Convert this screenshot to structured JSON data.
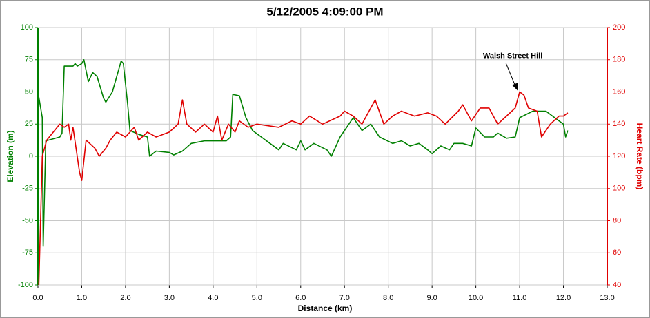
{
  "chart_data": {
    "type": "line",
    "title": "5/12/2005 4:09:00 PM",
    "x_label": "Distance (km)",
    "y_label": "Elevation (m)",
    "y2_label": "Heart Rate (bpm)",
    "y_color": "#008000",
    "y2_color": "#e00000",
    "grid": true,
    "xlim": [
      0,
      13
    ],
    "xticks": [
      {
        "value": 0,
        "label": "0.0"
      },
      {
        "value": 1,
        "label": "1.0"
      },
      {
        "value": 2,
        "label": "2.0"
      },
      {
        "value": 3,
        "label": "3.0"
      },
      {
        "value": 4,
        "label": "4.0"
      },
      {
        "value": 5,
        "label": "5.0"
      },
      {
        "value": 6,
        "label": "6.0"
      },
      {
        "value": 7,
        "label": "7.0"
      },
      {
        "value": 8,
        "label": "8.0"
      },
      {
        "value": 9,
        "label": "9.0"
      },
      {
        "value": 10,
        "label": "10.0"
      },
      {
        "value": 11,
        "label": "11.0"
      },
      {
        "value": 12,
        "label": "12.0"
      },
      {
        "value": 13,
        "label": "13.0"
      }
    ],
    "ylim": [
      -100,
      100
    ],
    "yticks": [
      -100,
      -75,
      -50,
      -25,
      0,
      25,
      50,
      75,
      100
    ],
    "y2lim": [
      40,
      200
    ],
    "y2ticks": [
      40,
      60,
      80,
      100,
      120,
      140,
      160,
      180,
      200
    ],
    "series": [
      {
        "name": "Elevation (m)",
        "color": "#008000",
        "x": [
          0,
          0.1,
          0.12,
          0.18,
          0.5,
          0.55,
          0.6,
          0.8,
          0.85,
          0.9,
          1.0,
          1.05,
          1.15,
          1.25,
          1.35,
          1.5,
          1.55,
          1.7,
          1.8,
          1.9,
          1.95,
          2.05,
          2.1,
          2.3,
          2.5,
          2.55,
          2.7,
          3.0,
          3.1,
          3.3,
          3.5,
          3.8,
          4.3,
          4.4,
          4.45,
          4.6,
          4.75,
          4.9,
          5.1,
          5.3,
          5.5,
          5.6,
          5.9,
          6.0,
          6.1,
          6.3,
          6.6,
          6.7,
          6.9,
          7.1,
          7.2,
          7.4,
          7.6,
          7.8,
          8.1,
          8.3,
          8.5,
          8.7,
          8.9,
          9.0,
          9.2,
          9.4,
          9.5,
          9.7,
          9.9,
          10.0,
          10.2,
          10.4,
          10.5,
          10.7,
          10.9,
          11.0,
          11.3,
          11.6,
          11.8,
          12.0,
          12.05,
          12.1
        ],
        "values": [
          50,
          30,
          -70,
          12,
          15,
          18,
          70,
          70,
          72,
          70,
          72,
          75,
          58,
          65,
          62,
          45,
          42,
          50,
          62,
          74,
          72,
          40,
          20,
          17,
          15,
          0,
          4,
          3,
          1,
          4,
          10,
          12,
          12,
          15,
          48,
          47,
          30,
          20,
          15,
          10,
          5,
          10,
          5,
          12,
          5,
          10,
          5,
          0,
          15,
          25,
          30,
          20,
          25,
          15,
          10,
          12,
          8,
          10,
          5,
          2,
          8,
          5,
          10,
          10,
          8,
          22,
          15,
          15,
          18,
          14,
          15,
          30,
          35,
          35,
          30,
          25,
          15,
          20
        ]
      },
      {
        "name": "Heart Rate (bpm)",
        "color": "#e00000",
        "axis": "y2",
        "x": [
          0.02,
          0.1,
          0.2,
          0.5,
          0.6,
          0.7,
          0.75,
          0.8,
          0.95,
          1.0,
          1.1,
          1.3,
          1.4,
          1.55,
          1.65,
          1.8,
          2.0,
          2.2,
          2.3,
          2.5,
          2.7,
          3.0,
          3.2,
          3.3,
          3.4,
          3.6,
          3.8,
          4.0,
          4.1,
          4.2,
          4.35,
          4.5,
          4.6,
          4.8,
          5.0,
          5.5,
          5.8,
          6.0,
          6.2,
          6.5,
          6.9,
          7.0,
          7.2,
          7.4,
          7.6,
          7.7,
          7.9,
          8.1,
          8.3,
          8.6,
          8.9,
          9.1,
          9.3,
          9.6,
          9.7,
          9.9,
          10.1,
          10.3,
          10.5,
          10.7,
          10.9,
          11.0,
          11.1,
          11.2,
          11.4,
          11.5,
          11.7,
          11.9,
          12.0,
          12.1
        ],
        "values": [
          40,
          120,
          130,
          140,
          138,
          140,
          130,
          138,
          110,
          105,
          130,
          125,
          120,
          125,
          130,
          135,
          132,
          138,
          130,
          135,
          132,
          135,
          140,
          155,
          140,
          135,
          140,
          135,
          145,
          130,
          140,
          135,
          142,
          138,
          140,
          138,
          142,
          140,
          145,
          140,
          145,
          148,
          145,
          140,
          150,
          155,
          140,
          145,
          148,
          145,
          147,
          145,
          140,
          148,
          152,
          142,
          150,
          150,
          140,
          145,
          150,
          160,
          158,
          150,
          148,
          132,
          140,
          145,
          145,
          147
        ]
      }
    ],
    "annotations": [
      {
        "text": "Walsh Street Hill",
        "x": 11.0,
        "y": 160,
        "axis": "y2"
      }
    ]
  }
}
